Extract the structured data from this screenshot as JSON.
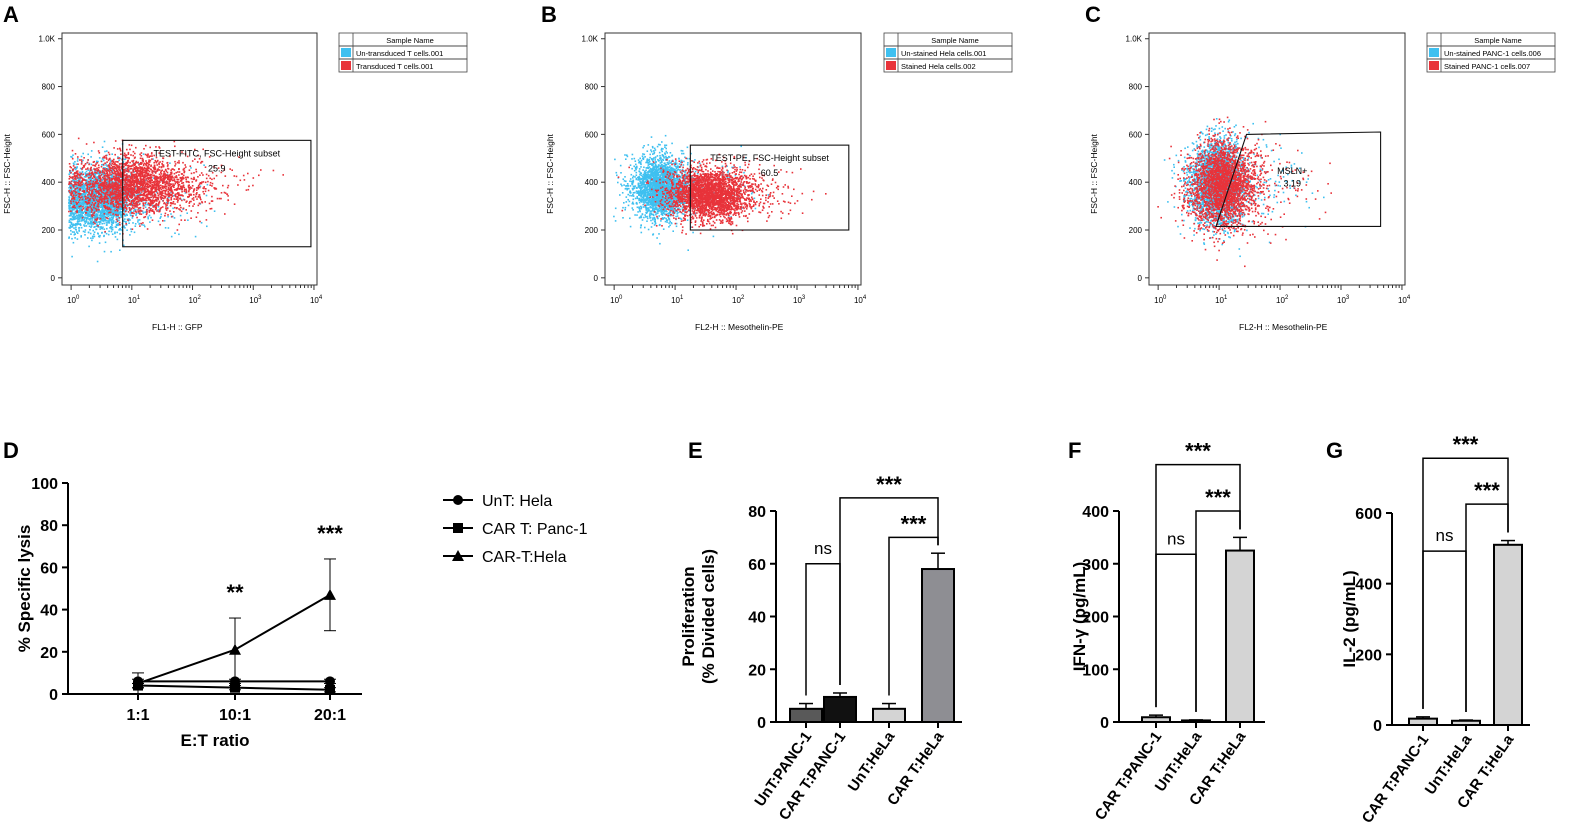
{
  "colors": {
    "cyan": "#3fc0f0",
    "red": "#e8333a",
    "dark": "#595959",
    "black": "#111111",
    "mid": "#8e8e93",
    "light": "#d4d4d4"
  },
  "panel_letters": [
    "A",
    "B",
    "C",
    "D",
    "E",
    "F",
    "G"
  ],
  "chart_data": [
    {
      "panel": "A",
      "type": "scatter",
      "title": "",
      "x_ticks": [
        {
          "b": "10",
          "e": "0"
        },
        {
          "b": "10",
          "e": "1"
        },
        {
          "b": "10",
          "e": "2"
        },
        {
          "b": "10",
          "e": "3"
        },
        {
          "b": "10",
          "e": "4"
        }
      ],
      "y_ticks": [
        "0",
        "200",
        "400",
        "600",
        "800",
        "1.0K"
      ],
      "xlabel": "FL1-H :: GFP",
      "ylabel": "FSC-H :: FSC-Height",
      "xlim_log": [
        -0.15,
        4.05
      ],
      "ylim": [
        -30,
        1024
      ],
      "legend_header": "Sample Name",
      "legend": [
        {
          "name": "Un-transduced T cells.001",
          "color": "cyan"
        },
        {
          "name": "Transduced T cells.001",
          "color": "red"
        }
      ],
      "gate": {
        "label": "TEST-FITC, FSC-Height subset",
        "value": "25.9",
        "log_x": [
          0.85,
          3.95
        ],
        "y": [
          130,
          575
        ]
      },
      "populations": [
        {
          "color": "cyan",
          "cx": 0.45,
          "sx": 0.32,
          "cy": 330,
          "sy": 70
        },
        {
          "color": "red",
          "cx": 1.0,
          "sx": 0.55,
          "cy": 390,
          "sy": 60
        }
      ]
    },
    {
      "panel": "B",
      "type": "scatter",
      "title": "",
      "x_ticks": [
        {
          "b": "10",
          "e": "0"
        },
        {
          "b": "10",
          "e": "1"
        },
        {
          "b": "10",
          "e": "2"
        },
        {
          "b": "10",
          "e": "3"
        },
        {
          "b": "10",
          "e": "4"
        }
      ],
      "y_ticks": [
        "0",
        "200",
        "400",
        "600",
        "800",
        "1.0K"
      ],
      "xlabel": "FL2-H :: Mesothelin-PE",
      "ylabel": "FSC-H :: FSC-Height",
      "xlim_log": [
        -0.15,
        4.05
      ],
      "ylim": [
        -30,
        1024
      ],
      "legend_header": "Sample Name",
      "legend": [
        {
          "name": "Un-stained Hela cells.001",
          "color": "cyan"
        },
        {
          "name": "Stained Hela cells.002",
          "color": "red"
        }
      ],
      "gate": {
        "label": "TEST-PE, FSC-Height subset",
        "value": "60.5",
        "log_x": [
          1.25,
          3.85
        ],
        "y": [
          200,
          555
        ]
      },
      "populations": [
        {
          "color": "cyan",
          "cx": 0.75,
          "sx": 0.22,
          "cy": 380,
          "sy": 65
        },
        {
          "color": "red",
          "cx": 1.55,
          "sx": 0.35,
          "cy": 355,
          "sy": 55
        }
      ]
    },
    {
      "panel": "C",
      "type": "scatter",
      "title": "",
      "x_ticks": [
        {
          "b": "10",
          "e": "0"
        },
        {
          "b": "10",
          "e": "1"
        },
        {
          "b": "10",
          "e": "2"
        },
        {
          "b": "10",
          "e": "3"
        },
        {
          "b": "10",
          "e": "4"
        }
      ],
      "y_ticks": [
        "0",
        "200",
        "400",
        "600",
        "800",
        "1.0K"
      ],
      "xlabel": "FL2-H :: Mesothelin-PE",
      "ylabel": "FSC-H :: FSC-Height",
      "xlim_log": [
        -0.15,
        4.05
      ],
      "ylim": [
        -30,
        1024
      ],
      "legend_header": "Sample Name",
      "legend": [
        {
          "name": "Un-stained PANC-1 cells.006",
          "color": "cyan"
        },
        {
          "name": "Stained PANC-1 cells.007",
          "color": "red"
        }
      ],
      "gate": {
        "label": "MSLN+",
        "value": "3.19",
        "polygon_log": [
          [
            0.95,
            215
          ],
          [
            1.45,
            600
          ],
          [
            3.65,
            610
          ],
          [
            3.65,
            215
          ]
        ]
      },
      "populations": [
        {
          "color": "cyan",
          "cx": 0.95,
          "sx": 0.22,
          "cy": 400,
          "sy": 85
        },
        {
          "color": "red",
          "cx": 1.05,
          "sx": 0.28,
          "cy": 390,
          "sy": 90
        }
      ]
    },
    {
      "panel": "D",
      "type": "line",
      "categories": [
        "1:1",
        "10:1",
        "20:1"
      ],
      "xlabel": "E:T ratio",
      "ylabel": "% Specific lysis",
      "ylim": [
        0,
        100
      ],
      "y_ticks": [
        "0",
        "20",
        "40",
        "60",
        "80",
        "100"
      ],
      "series": [
        {
          "name": "UnT: Hela",
          "marker": "circle",
          "values": [
            6,
            6,
            6
          ],
          "errors": [
            1,
            1,
            1
          ]
        },
        {
          "name": "CAR T: Panc-1",
          "marker": "square",
          "values": [
            4,
            3,
            2
          ],
          "errors": [
            1,
            1,
            1
          ]
        },
        {
          "name": "CAR-T:Hela",
          "marker": "triangle",
          "values": [
            5,
            21,
            47
          ],
          "errors": [
            5,
            15,
            17
          ]
        }
      ],
      "significance": [
        "",
        "**",
        "***"
      ]
    },
    {
      "panel": "E",
      "type": "bar",
      "categories": [
        "UnT:PANC-1",
        "CAR T:PANC-1",
        "UnT:HeLa",
        "CAR T:HeLa"
      ],
      "values": [
        5,
        9.5,
        5,
        58
      ],
      "errors": [
        2,
        1.5,
        2,
        6
      ],
      "fills": [
        "dark",
        "black",
        "light",
        "mid"
      ],
      "ylabel_lines": [
        "Proliferation",
        "(% Divided cells)"
      ],
      "ylim": [
        0,
        80
      ],
      "y_ticks": [
        "0",
        "20",
        "40",
        "60",
        "80"
      ],
      "comparisons": [
        {
          "from": 0,
          "to": 1,
          "label": "ns",
          "level": 60
        },
        {
          "from": 2,
          "to": 3,
          "label": "***",
          "level": 70
        },
        {
          "from": 1,
          "to": 3,
          "label": "***",
          "level": 85
        }
      ]
    },
    {
      "panel": "F",
      "type": "bar",
      "categories": [
        "CAR T:PANC-1",
        "UnT:HeLa",
        "CAR T:HeLa"
      ],
      "values": [
        9,
        3,
        325
      ],
      "errors": [
        4,
        1,
        25
      ],
      "fills": [
        "light",
        "light",
        "light"
      ],
      "ylabel_lines": [
        "IFN-γ (pg/mL)"
      ],
      "ylim": [
        0,
        400
      ],
      "y_ticks": [
        "0",
        "100",
        "200",
        "300",
        "400"
      ],
      "comparisons": [
        {
          "from": 0,
          "to": 1,
          "label": "ns",
          "level": 318
        },
        {
          "from": 1,
          "to": 2,
          "label": "***",
          "level": 400
        },
        {
          "from": 0,
          "to": 2,
          "label": "***",
          "level": 488
        }
      ]
    },
    {
      "panel": "G",
      "type": "bar",
      "categories": [
        "CAR T:PANC-1",
        "UnT:HeLa",
        "CAR T:HeLa"
      ],
      "values": [
        18,
        12,
        510
      ],
      "errors": [
        5,
        2,
        12
      ],
      "fills": [
        "light",
        "light",
        "light"
      ],
      "ylabel_lines": [
        "IL-2 (pg/mL)"
      ],
      "ylim": [
        0,
        600
      ],
      "y_ticks": [
        "0",
        "200",
        "400",
        "600"
      ],
      "comparisons": [
        {
          "from": 0,
          "to": 1,
          "label": "ns",
          "level": 492
        },
        {
          "from": 1,
          "to": 2,
          "label": "***",
          "level": 625
        },
        {
          "from": 0,
          "to": 2,
          "label": "***",
          "level": 755
        }
      ]
    }
  ]
}
